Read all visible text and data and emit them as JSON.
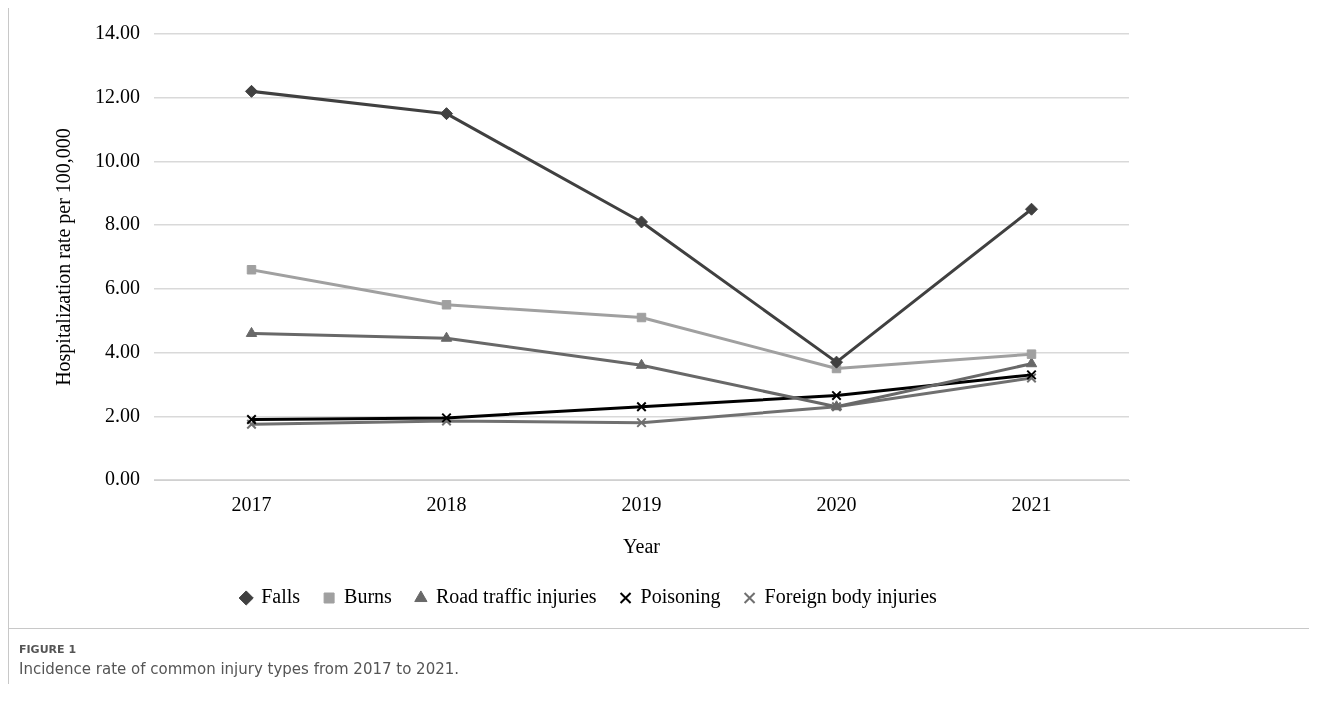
{
  "chart_data": {
    "type": "line",
    "xlabel": "Year",
    "ylabel": "Hospitalization rate per 100,000",
    "categories": [
      "2017",
      "2018",
      "2019",
      "2020",
      "2021"
    ],
    "series": [
      {
        "name": "Falls",
        "color": "#404040",
        "marker": "diamond",
        "values": [
          12.2,
          11.5,
          8.1,
          3.7,
          8.5
        ]
      },
      {
        "name": "Burns",
        "color": "#a0a0a0",
        "marker": "square",
        "values": [
          6.6,
          5.5,
          5.1,
          3.5,
          3.95
        ]
      },
      {
        "name": "Road traffic injuries",
        "color": "#686868",
        "marker": "triangle",
        "values": [
          4.6,
          4.45,
          3.6,
          2.3,
          3.65
        ]
      },
      {
        "name": "Poisoning",
        "color": "#000000",
        "marker": "cross",
        "values": [
          1.9,
          1.95,
          2.3,
          2.65,
          3.3
        ]
      },
      {
        "name": "Foreign body injuries",
        "color": "#707070",
        "marker": "cross",
        "values": [
          1.75,
          1.85,
          1.8,
          2.3,
          3.2
        ]
      }
    ],
    "ylim": [
      0,
      14
    ],
    "yticks": [
      {
        "value": 0,
        "label": "0.00"
      },
      {
        "value": 2,
        "label": "2.00"
      },
      {
        "value": 4,
        "label": "4.00"
      },
      {
        "value": 6,
        "label": "6.00"
      },
      {
        "value": 8,
        "label": "8.00"
      },
      {
        "value": 10,
        "label": "10.00"
      },
      {
        "value": 12,
        "label": "12.00"
      },
      {
        "value": 14,
        "label": "14.00"
      }
    ],
    "grid": "y",
    "legend": "bottom",
    "line_style": "solid",
    "annotations": [
      "FIGURE 1",
      "Incidence rate of common injury types from 2017 to 2021."
    ]
  }
}
